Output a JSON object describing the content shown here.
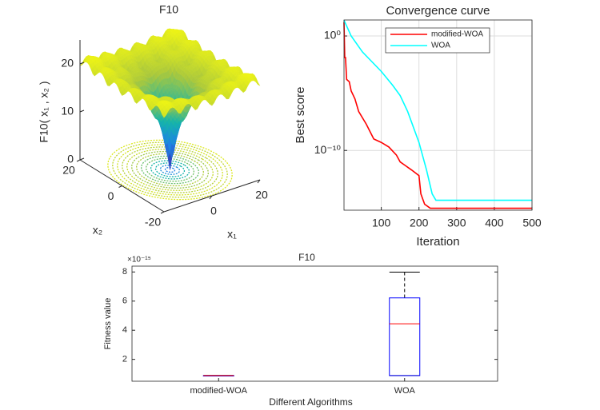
{
  "chart_data": [
    {
      "type": "surface",
      "title": "F10",
      "xlabel": "x₁",
      "ylabel": "x₂",
      "zlabel": "F10( x₁ , x₂ )",
      "xlim": [
        -20,
        20
      ],
      "ylim": [
        -20,
        20
      ],
      "zlim": [
        0,
        25
      ],
      "xticks": [
        0,
        20
      ],
      "yticks": [
        -20,
        0,
        20
      ],
      "zticks": [
        0,
        10,
        20
      ]
    },
    {
      "type": "line",
      "title": "Convergence curve",
      "xlabel": "Iteration",
      "ylabel": "Best score",
      "xlim": [
        1,
        500
      ],
      "ylim": [
        6e-16,
        25
      ],
      "yscale": "log",
      "xticks": [
        100,
        200,
        300,
        400,
        500
      ],
      "yticks": [
        {
          "value": 1,
          "label": "10⁰"
        },
        {
          "value": 1e-10,
          "label": "10⁻¹⁰"
        }
      ],
      "grid": true,
      "legend": "northeast",
      "series": [
        {
          "name": "modified-WOA",
          "color": "#ff0000",
          "x": [
            1,
            3,
            5,
            8,
            15,
            20,
            30,
            40,
            60,
            80,
            100,
            120,
            140,
            150,
            180,
            200,
            205,
            215,
            230,
            500
          ],
          "values": [
            16,
            0.013,
            0.013,
            0.00016,
            0.0001,
            1.6e-05,
            3.2e-06,
            2.5e-07,
            2e-08,
            1e-09,
            5e-10,
            2e-10,
            4e-11,
            1e-11,
            2e-12,
            6.3e-13,
            1.6e-14,
            2e-15,
            8.88e-16,
            8.88e-16
          ]
        },
        {
          "name": "WOA",
          "color": "#00ffff",
          "x": [
            1,
            20,
            50,
            100,
            130,
            150,
            170,
            200,
            220,
            235,
            245,
            500
          ],
          "values": [
            24,
            1,
            0.04,
            0.0008,
            5e-05,
            6.3e-06,
            2.5e-07,
            5e-10,
            2e-12,
            1.6e-14,
            4.44e-15,
            4.44e-15
          ]
        }
      ]
    },
    {
      "type": "box",
      "title": "F10",
      "xlabel": "Different Algorithms",
      "ylabel": "Fitness value",
      "y_multiplier": "×10⁻¹⁵",
      "categories": [
        "modified-WOA",
        "WOA"
      ],
      "ylim": [
        0.5,
        8.4
      ],
      "yticks": [
        2,
        4,
        6,
        8
      ],
      "box_color": "#0000ff",
      "median_color": "#ff0000",
      "boxes": [
        {
          "min": 0.888,
          "q1": 0.888,
          "median": 0.888,
          "q3": 0.888,
          "max": 0.888
        },
        {
          "min": 0.888,
          "q1": 0.888,
          "median": 4.44,
          "q3": 6.22,
          "max": 7.99
        }
      ]
    }
  ]
}
